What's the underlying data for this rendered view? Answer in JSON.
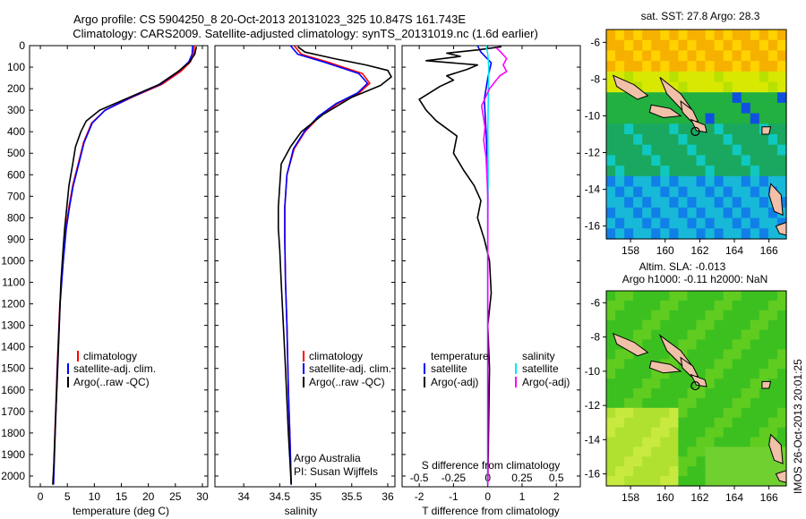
{
  "header": {
    "line1": "Argo profile: CS 5904250_8 20-Oct-2013 20131023_325 10.847S 161.743E",
    "line2": "Climatology: CARS2009. Satellite-adjusted climatology: synTS_20131019.nc (1.6d earlier)"
  },
  "colors": {
    "climatology": "#ff0000",
    "satellite": "#0000ff",
    "argo": "#000000",
    "salinity_satellite": "#00e5ff",
    "salinity_argo": "#ff00ff"
  },
  "footer": {
    "credit1": "Argo Australia",
    "credit2": "PI: Susan Wijffels",
    "stamp": "IMOS 26-Oct-2013 20:01:25"
  },
  "maps": {
    "sst_title": "sat. SST: 27.8 Argo: 28.3",
    "sla_title1": "Altim. SLA: -0.013",
    "sla_title2": "Argo h1000: -0.11 h2000: NaN",
    "lat_ticks": [
      "-6",
      "-8",
      "-10",
      "-12",
      "-14",
      "-16"
    ],
    "lon_ticks": [
      "158",
      "160",
      "162",
      "164",
      "166"
    ],
    "float_position": {
      "lon": 161.743,
      "lat": -10.847
    }
  },
  "chart_data": [
    {
      "type": "line",
      "xlabel": "temperature (deg C)",
      "ylabel": "",
      "xlim": [
        -2,
        31
      ],
      "ylim": [
        2050,
        0
      ],
      "xticks": [
        "0",
        "5",
        "10",
        "15",
        "20",
        "25",
        "30"
      ],
      "yticks": [
        "0",
        "100",
        "200",
        "300",
        "400",
        "500",
        "600",
        "700",
        "800",
        "900",
        "1000",
        "1100",
        "1200",
        "1300",
        "1400",
        "1500",
        "1600",
        "1700",
        "1800",
        "1900",
        "2000"
      ],
      "legend": [
        "climatology",
        "satellite-adj. clim.",
        "Argo(..raw -QC)"
      ],
      "legend_position": "bottom-left",
      "series": [
        {
          "name": "climatology",
          "color": "#ff0000",
          "x": [
            28.5,
            28.4,
            27.8,
            26,
            22.5,
            17,
            12,
            9.5,
            8.0,
            7.0,
            6.0,
            5.3,
            4.7,
            4.2,
            3.6,
            3.1,
            2.7,
            2.4
          ],
          "y": [
            0,
            40,
            75,
            120,
            180,
            240,
            300,
            360,
            450,
            550,
            650,
            750,
            850,
            1000,
            1200,
            1500,
            1800,
            2040
          ]
        },
        {
          "name": "satellite-adj. clim.",
          "color": "#0000ff",
          "x": [
            28.2,
            28.1,
            27.5,
            25.6,
            22.2,
            16.8,
            12,
            9.6,
            8.1,
            7.1,
            6.1,
            5.4,
            4.8,
            4.25,
            3.65,
            3.15,
            2.75,
            2.45
          ],
          "y": [
            0,
            40,
            75,
            120,
            180,
            240,
            300,
            360,
            450,
            550,
            650,
            750,
            850,
            1000,
            1200,
            1500,
            1800,
            2040
          ]
        },
        {
          "name": "Argo(..raw -QC)",
          "color": "#000000",
          "x": [
            28.9,
            28.6,
            27.5,
            25.5,
            22,
            16.5,
            11,
            8.5,
            7.5,
            6.5,
            6.0,
            5.3,
            4.9,
            4.5,
            4.2,
            3.8,
            3.5,
            3.2,
            2.8,
            2.5,
            2.3
          ],
          "y": [
            5,
            40,
            80,
            120,
            180,
            240,
            300,
            350,
            400,
            470,
            550,
            650,
            750,
            850,
            950,
            1100,
            1300,
            1500,
            1750,
            1950,
            2040
          ]
        }
      ]
    },
    {
      "type": "line",
      "xlabel": "salinity",
      "ylabel": "",
      "xlim": [
        33.6,
        36.1
      ],
      "ylim": [
        2050,
        0
      ],
      "xticks": [
        "34",
        "34.5",
        "35",
        "35.5",
        "36"
      ],
      "legend": [
        "climatology",
        "satellite-adj. clim.",
        "Argo(..raw -QC)"
      ],
      "legend_position": "bottom-right",
      "series": [
        {
          "name": "climatology",
          "color": "#ff0000",
          "x": [
            34.7,
            34.8,
            35.2,
            35.65,
            35.75,
            35.6,
            35.3,
            35.05,
            34.85,
            34.7,
            34.6,
            34.57,
            34.57,
            34.58,
            34.6,
            34.62,
            34.64,
            34.66
          ],
          "y": [
            0,
            40,
            80,
            130,
            175,
            220,
            270,
            330,
            400,
            480,
            600,
            750,
            900,
            1100,
            1300,
            1600,
            1800,
            2040
          ]
        },
        {
          "name": "satellite-adj. clim.",
          "color": "#0000ff",
          "x": [
            34.65,
            34.75,
            35.15,
            35.6,
            35.72,
            35.58,
            35.28,
            35.03,
            34.84,
            34.69,
            34.6,
            34.57,
            34.57,
            34.58,
            34.6,
            34.62,
            34.64,
            34.66
          ],
          "y": [
            0,
            40,
            80,
            130,
            175,
            220,
            270,
            330,
            400,
            480,
            600,
            750,
            900,
            1100,
            1300,
            1600,
            1800,
            2040
          ]
        },
        {
          "name": "Argo(..raw -QC)",
          "color": "#000000",
          "x": [
            34.75,
            34.85,
            35.25,
            35.7,
            36.0,
            36.05,
            35.9,
            35.5,
            35.1,
            34.8,
            34.65,
            34.52,
            34.5,
            34.48,
            34.48,
            34.5,
            34.52,
            34.55,
            34.58,
            34.62,
            34.66
          ],
          "y": [
            5,
            30,
            60,
            90,
            115,
            145,
            185,
            240,
            320,
            400,
            470,
            550,
            650,
            750,
            850,
            950,
            1100,
            1300,
            1500,
            1800,
            2040
          ]
        }
      ]
    },
    {
      "type": "line",
      "title": "S difference from climatology",
      "xlabel": "T difference from climatology",
      "xlim": [
        -2.5,
        2.7
      ],
      "ylim": [
        2050,
        0
      ],
      "xticks": [
        "-2",
        "-1",
        "0",
        "1",
        "2"
      ],
      "top_xticks": [
        "-0.5",
        "-0.25",
        "0",
        "0.25",
        "0.5"
      ],
      "legend_temperature_title": "temperature",
      "legend_salinity_title": "salinity",
      "legend_temperature": [
        "satellite",
        "Argo(-adj)"
      ],
      "legend_salinity": [
        "satellite",
        "Argo(-adj)"
      ],
      "legend_position": "bottom",
      "series": [
        {
          "name": "temperature satellite",
          "color": "#0000ff",
          "x": [
            -0.3,
            -0.2,
            0.1,
            0.0,
            -0.1,
            -0.05,
            0.0,
            0.0,
            0.0,
            0.0
          ],
          "y": [
            0,
            30,
            80,
            150,
            250,
            400,
            600,
            900,
            1400,
            2040
          ]
        },
        {
          "name": "temperature Argo(-adj)",
          "color": "#000000",
          "x": [
            0.4,
            -0.3,
            -1.2,
            -0.8,
            -1.8,
            -0.3,
            -0.6,
            -1.2,
            -1.0,
            -1.4,
            -2.0,
            -1.8,
            -1.5,
            -0.9,
            -1.0,
            -0.7,
            -0.4,
            -0.2,
            -0.3,
            -0.1,
            0.05,
            0.1,
            0.0,
            0.05,
            0.0
          ],
          "y": [
            5,
            20,
            35,
            50,
            70,
            90,
            110,
            140,
            160,
            190,
            250,
            300,
            350,
            420,
            500,
            580,
            650,
            720,
            800,
            900,
            1000,
            1150,
            1300,
            1500,
            2040
          ]
        },
        {
          "name": "salinity satellite",
          "color": "#00e5ff",
          "x": [
            -0.05,
            0.0,
            0.03,
            0.02,
            0.0,
            0.01,
            0.0,
            0.0,
            0.0
          ],
          "y": [
            0,
            40,
            100,
            200,
            400,
            600,
            900,
            1400,
            2040
          ]
        },
        {
          "name": "salinity Argo(-adj)",
          "color": "#ff00ff",
          "x": [
            0.25,
            0.38,
            0.55,
            0.45,
            0.55,
            0.35,
            0.2,
            0.05,
            -0.18,
            -0.08,
            -0.12,
            -0.05,
            0.0,
            0.0,
            0.0
          ],
          "y": [
            10,
            30,
            60,
            90,
            120,
            140,
            170,
            200,
            280,
            380,
            440,
            520,
            700,
            1200,
            2040
          ]
        }
      ]
    }
  ]
}
